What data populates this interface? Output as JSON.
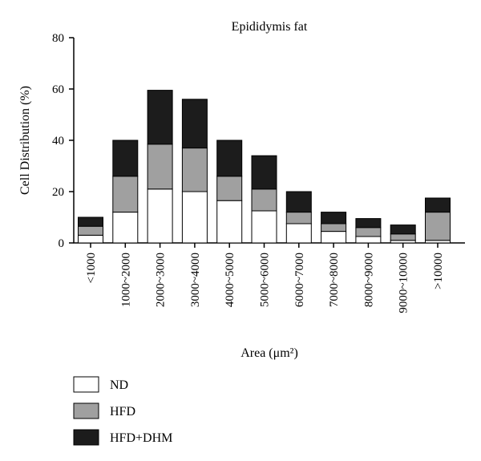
{
  "chart_data": {
    "type": "bar",
    "stacked": true,
    "title": "Epididymis fat",
    "xlabel": "Area (μm²)",
    "ylabel": "Cell Distribution (%)",
    "ylim": [
      0,
      80
    ],
    "yticks": [
      0,
      20,
      40,
      60,
      80
    ],
    "grid": false,
    "legend_position": "bottom-left",
    "categories": [
      "<1000",
      "1000~2000",
      "2000~3000",
      "3000~4000",
      "4000~5000",
      "5000~6000",
      "6000~7000",
      "7000~8000",
      "8000~9000",
      "9000~10000",
      ">10000"
    ],
    "series": [
      {
        "name": "ND",
        "color": "#ffffff",
        "values": [
          3,
          12,
          21,
          20,
          16.5,
          12.5,
          7.5,
          4.5,
          2.5,
          1,
          1
        ]
      },
      {
        "name": "HFD",
        "color": "#a0a0a0",
        "values": [
          3.5,
          14,
          17.5,
          17,
          9.5,
          8.5,
          4.5,
          3,
          3.5,
          2.5,
          11
        ]
      },
      {
        "name": "HFD+DHM",
        "color": "#1c1c1c",
        "values": [
          3.5,
          14,
          21,
          19,
          14,
          13,
          8,
          4.5,
          3.5,
          3.5,
          5.5
        ]
      }
    ]
  }
}
